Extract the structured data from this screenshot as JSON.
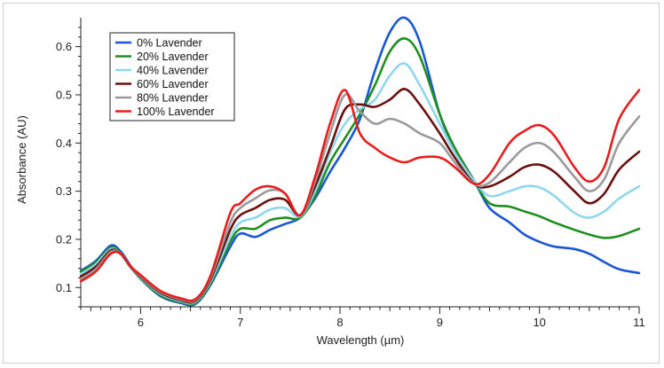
{
  "chart_data": {
    "type": "line",
    "title": "",
    "xlabel": "Wavelength (µm)",
    "ylabel": "Absorbance (AU)",
    "xlim": [
      5.4,
      11.0
    ],
    "ylim": [
      0.06,
      0.66
    ],
    "x_ticks": [
      "6",
      "7",
      "8",
      "9",
      "10",
      "11"
    ],
    "y_ticks": [
      "0.1",
      "0.2",
      "0.3",
      "0.4",
      "0.5",
      "0.6"
    ],
    "grid": false,
    "legend_position": "top-left",
    "x": [
      5.4,
      5.55,
      5.7,
      5.8,
      5.9,
      6.0,
      6.2,
      6.4,
      6.55,
      6.7,
      6.9,
      7.0,
      7.15,
      7.3,
      7.45,
      7.6,
      7.75,
      7.9,
      8.05,
      8.2,
      8.35,
      8.5,
      8.65,
      8.8,
      9.0,
      9.15,
      9.35,
      9.5,
      9.7,
      9.85,
      10.0,
      10.15,
      10.35,
      10.5,
      10.65,
      10.8,
      11.0
    ],
    "series": [
      {
        "name": "0% Lavender",
        "color": "#1a56d6",
        "values": [
          0.135,
          0.155,
          0.187,
          0.175,
          0.145,
          0.118,
          0.082,
          0.068,
          0.066,
          0.105,
          0.185,
          0.212,
          0.205,
          0.22,
          0.232,
          0.245,
          0.285,
          0.34,
          0.39,
          0.45,
          0.55,
          0.63,
          0.66,
          0.61,
          0.46,
          0.39,
          0.32,
          0.265,
          0.235,
          0.21,
          0.195,
          0.185,
          0.18,
          0.17,
          0.153,
          0.138,
          0.13
        ]
      },
      {
        "name": "20% Lavender",
        "color": "#1f8f1f",
        "values": [
          0.133,
          0.152,
          0.183,
          0.172,
          0.143,
          0.118,
          0.084,
          0.07,
          0.068,
          0.108,
          0.195,
          0.222,
          0.222,
          0.24,
          0.245,
          0.245,
          0.29,
          0.36,
          0.41,
          0.46,
          0.52,
          0.59,
          0.617,
          0.58,
          0.46,
          0.39,
          0.32,
          0.275,
          0.268,
          0.258,
          0.248,
          0.235,
          0.22,
          0.21,
          0.203,
          0.207,
          0.222
        ]
      },
      {
        "name": "40% Lavender",
        "color": "#8fd6ef",
        "values": [
          0.128,
          0.148,
          0.18,
          0.17,
          0.142,
          0.12,
          0.087,
          0.072,
          0.07,
          0.112,
          0.205,
          0.235,
          0.245,
          0.262,
          0.265,
          0.248,
          0.3,
          0.38,
          0.44,
          0.47,
          0.49,
          0.54,
          0.565,
          0.52,
          0.44,
          0.38,
          0.32,
          0.29,
          0.3,
          0.31,
          0.308,
          0.29,
          0.255,
          0.245,
          0.258,
          0.285,
          0.31
        ]
      },
      {
        "name": "60% Lavender",
        "color": "#6b0f0f",
        "values": [
          0.123,
          0.143,
          0.177,
          0.17,
          0.142,
          0.122,
          0.089,
          0.074,
          0.072,
          0.116,
          0.22,
          0.25,
          0.265,
          0.282,
          0.282,
          0.25,
          0.31,
          0.39,
          0.47,
          0.48,
          0.475,
          0.49,
          0.512,
          0.48,
          0.42,
          0.37,
          0.315,
          0.31,
          0.33,
          0.35,
          0.355,
          0.34,
          0.3,
          0.275,
          0.295,
          0.345,
          0.382
        ]
      },
      {
        "name": "80% Lavender",
        "color": "#9a9a9a",
        "values": [
          0.118,
          0.138,
          0.174,
          0.17,
          0.143,
          0.124,
          0.091,
          0.076,
          0.074,
          0.12,
          0.235,
          0.265,
          0.285,
          0.302,
          0.295,
          0.25,
          0.32,
          0.42,
          0.5,
          0.465,
          0.44,
          0.45,
          0.44,
          0.42,
          0.4,
          0.36,
          0.315,
          0.318,
          0.36,
          0.39,
          0.4,
          0.38,
          0.33,
          0.3,
          0.325,
          0.4,
          0.455
        ]
      },
      {
        "name": "100% Lavender",
        "color": "#e81e1e",
        "values": [
          0.113,
          0.133,
          0.17,
          0.17,
          0.144,
          0.126,
          0.093,
          0.078,
          0.076,
          0.124,
          0.255,
          0.275,
          0.303,
          0.31,
          0.295,
          0.25,
          0.33,
          0.44,
          0.51,
          0.42,
          0.39,
          0.37,
          0.36,
          0.37,
          0.37,
          0.35,
          0.315,
          0.335,
          0.4,
          0.425,
          0.437,
          0.415,
          0.35,
          0.32,
          0.35,
          0.45,
          0.51
        ]
      }
    ]
  }
}
